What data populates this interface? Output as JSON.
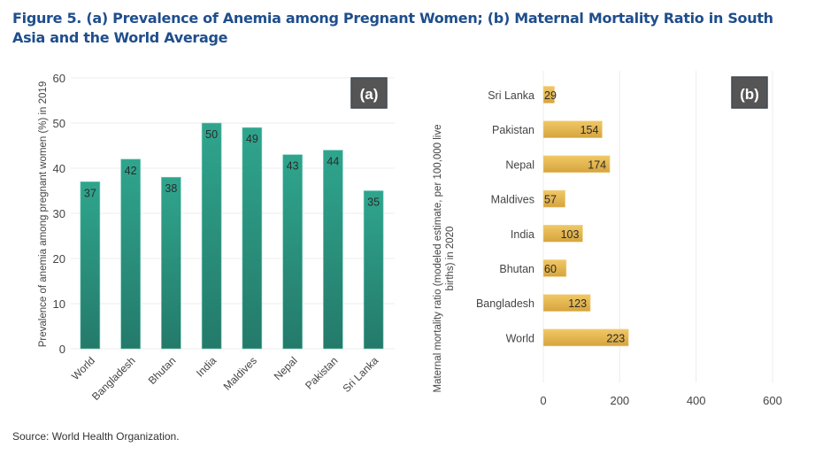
{
  "figure": {
    "title": "Figure 5. (a) Prevalence of Anemia among Pregnant Women; (b) Maternal Mortality Ratio in South Asia and the World Average",
    "source": "Source: World Health Organization."
  },
  "chart_data": [
    {
      "id": "a",
      "type": "bar",
      "orientation": "vertical",
      "panel_label": "(a)",
      "title": "",
      "xlabel": "",
      "ylabel": "Prevalence of anemia among pregnant women (%) in 2019",
      "categories": [
        "World",
        "Bangladesh",
        "Bhutan",
        "India",
        "Maldives",
        "Nepal",
        "Pakistan",
        "Sri Lanka"
      ],
      "values": [
        37,
        42,
        38,
        50,
        49,
        43,
        44,
        35
      ],
      "data_labels": [
        "37",
        "42",
        "38",
        "50",
        "49",
        "43",
        "44",
        "35"
      ],
      "ylim": [
        0,
        60
      ],
      "yticks": [
        0,
        10,
        20,
        30,
        40,
        50,
        60
      ],
      "grid": true,
      "legend": "none",
      "color": "#2a9d86",
      "color_dark": "#237a69"
    },
    {
      "id": "b",
      "type": "bar",
      "orientation": "horizontal",
      "panel_label": "(b)",
      "title": "",
      "xlabel": "",
      "ylabel": "Maternal mortality ratio (modeled estimate, per 100,000 live births) in 2020",
      "categories": [
        "Sri Lanka",
        "Pakistan",
        "Nepal",
        "Maldives",
        "India",
        "Bhutan",
        "Bangladesh",
        "World"
      ],
      "values": [
        29,
        154,
        174,
        57,
        103,
        60,
        123,
        223
      ],
      "data_labels": [
        "29",
        "154",
        "174",
        "57",
        "103",
        "60",
        "123",
        "223"
      ],
      "xlim": [
        0,
        600
      ],
      "xticks": [
        0,
        200,
        400,
        600
      ],
      "grid": true,
      "legend": "none",
      "color": "#e8bd55",
      "color_dark": "#d4a23a"
    }
  ]
}
